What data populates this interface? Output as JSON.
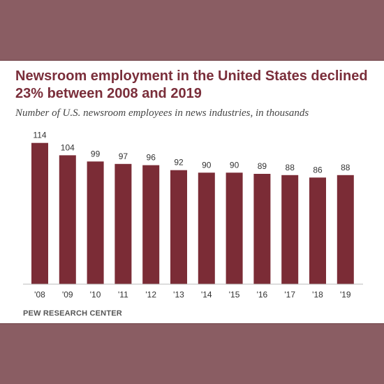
{
  "chart_data": {
    "type": "bar",
    "title": "Newsroom employment in the United States declined 23% between 2008 and 2019",
    "subtitle": "Number of U.S. newsroom employees in news industries, in thousands",
    "categories": [
      "'08",
      "'09",
      "'10",
      "'11",
      "'12",
      "'13",
      "'14",
      "'15",
      "'16",
      "'17",
      "'18",
      "'19"
    ],
    "values": [
      114,
      104,
      99,
      97,
      96,
      92,
      90,
      90,
      89,
      88,
      86,
      88
    ],
    "ylim": [
      0,
      120
    ],
    "grid": false,
    "legend": "none",
    "xlabel": "",
    "ylabel": "",
    "bar_color": "#7b2c36",
    "data_labels": true
  },
  "source": "PEW RESEARCH CENTER",
  "colors": {
    "background": "#8a5d63",
    "title": "#7a2e3a",
    "bar": "#7b2c36"
  }
}
